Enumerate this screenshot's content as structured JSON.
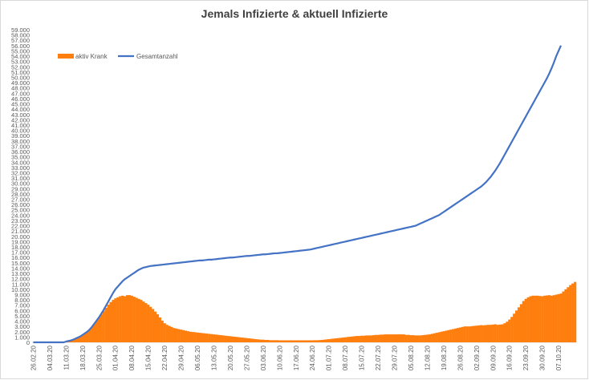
{
  "chart_data": {
    "type": "bar+line",
    "title": "Jemals Infizierte & aktuell Infizierte",
    "xlabel": "",
    "ylabel": "",
    "ylim": [
      0,
      59000
    ],
    "y_tick_step": 1000,
    "legend_position": "top-left",
    "grid": false,
    "x_tick_labels": [
      "26.02.20",
      "04.03.20",
      "11.03.20",
      "18.03.20",
      "25.03.20",
      "01.04.20",
      "08.04.20",
      "15.04.20",
      "22.04.20",
      "29.04.20",
      "06.05.20",
      "13.05.20",
      "20.05.20",
      "27.05.20",
      "03.06.20",
      "10.06.20",
      "17.06.20",
      "24.06.20",
      "01.07.20",
      "08.07.20",
      "15.07.20",
      "22.07.20",
      "29.07.20",
      "05.08.20",
      "12.08.20",
      "19.08.20",
      "26.08.20",
      "02.09.20",
      "09.09.20",
      "16.09.20",
      "23.09.20",
      "30.09.20",
      "07.10.20"
    ],
    "series": [
      {
        "name": "aktiv Krank",
        "type": "bar",
        "color": "#ff7f0e",
        "values": [
          0,
          0,
          0,
          0,
          0,
          0,
          0,
          0,
          0,
          0,
          0,
          0,
          0,
          0,
          150,
          250,
          350,
          500,
          700,
          900,
          1100,
          1400,
          1700,
          2000,
          2400,
          2900,
          3500,
          4100,
          4700,
          5300,
          5900,
          6500,
          7100,
          7600,
          8000,
          8300,
          8500,
          8700,
          8800,
          8700,
          8900,
          8900,
          8800,
          8600,
          8400,
          8200,
          8000,
          7700,
          7400,
          7100,
          6700,
          6300,
          5800,
          5300,
          4700,
          4100,
          3600,
          3300,
          3100,
          2900,
          2700,
          2600,
          2500,
          2400,
          2300,
          2200,
          2100,
          2000,
          1950,
          1900,
          1850,
          1800,
          1750,
          1700,
          1650,
          1600,
          1550,
          1500,
          1450,
          1400,
          1350,
          1300,
          1250,
          1200,
          1150,
          1100,
          1050,
          1000,
          950,
          900,
          850,
          800,
          750,
          700,
          650,
          600,
          550,
          500,
          500,
          450,
          450,
          400,
          400,
          400,
          400,
          380,
          380,
          380,
          380,
          380,
          380,
          380,
          380,
          380,
          380,
          380,
          380,
          380,
          380,
          380,
          400,
          400,
          420,
          450,
          500,
          550,
          600,
          650,
          700,
          750,
          800,
          850,
          900,
          950,
          1000,
          1050,
          1100,
          1150,
          1200,
          1200,
          1250,
          1250,
          1300,
          1300,
          1300,
          1350,
          1400,
          1400,
          1450,
          1450,
          1500,
          1500,
          1500,
          1500,
          1500,
          1500,
          1500,
          1500,
          1500,
          1400,
          1400,
          1350,
          1350,
          1300,
          1300,
          1300,
          1350,
          1400,
          1450,
          1500,
          1600,
          1700,
          1800,
          1900,
          2000,
          2100,
          2200,
          2300,
          2400,
          2500,
          2600,
          2700,
          2800,
          2900,
          3000,
          3000,
          3000,
          3050,
          3100,
          3150,
          3200,
          3250,
          3200,
          3250,
          3300,
          3300,
          3350,
          3400,
          3300,
          3350,
          3400,
          3600,
          3900,
          4300,
          4800,
          5400,
          6000,
          6600,
          7200,
          7800,
          8200,
          8500,
          8700,
          8800,
          8800,
          8800,
          8750,
          8700,
          8800,
          8850,
          8900,
          8800,
          8900,
          9000,
          9100,
          9200,
          9600,
          10000,
          10400,
          10800,
          11100,
          11400
        ],
        "note": "daily values, 26.02.20 to ~13.10.20"
      },
      {
        "name": "Gesamtanzahl",
        "type": "line",
        "color": "#4472c4",
        "values": [
          0,
          0,
          0,
          0,
          0,
          0,
          0,
          0,
          0,
          0,
          0,
          0,
          0,
          0,
          150,
          250,
          350,
          500,
          700,
          900,
          1100,
          1400,
          1700,
          2000,
          2400,
          2900,
          3500,
          4100,
          4700,
          5400,
          6100,
          6900,
          7700,
          8500,
          9300,
          10000,
          10500,
          11000,
          11500,
          11900,
          12200,
          12500,
          12800,
          13100,
          13400,
          13700,
          13900,
          14100,
          14200,
          14300,
          14400,
          14450,
          14500,
          14550,
          14600,
          14650,
          14700,
          14750,
          14800,
          14850,
          14900,
          14950,
          15000,
          15050,
          15100,
          15150,
          15200,
          15250,
          15300,
          15350,
          15400,
          15450,
          15450,
          15500,
          15550,
          15600,
          15600,
          15650,
          15700,
          15750,
          15800,
          15850,
          15900,
          15950,
          16000,
          16000,
          16050,
          16100,
          16150,
          16200,
          16250,
          16300,
          16300,
          16350,
          16400,
          16450,
          16500,
          16550,
          16600,
          16600,
          16650,
          16700,
          16750,
          16800,
          16800,
          16850,
          16900,
          16950,
          17000,
          17050,
          17100,
          17150,
          17200,
          17250,
          17300,
          17350,
          17400,
          17450,
          17500,
          17600,
          17700,
          17800,
          17900,
          18000,
          18100,
          18200,
          18300,
          18400,
          18500,
          18600,
          18700,
          18800,
          18900,
          19000,
          19100,
          19200,
          19300,
          19400,
          19500,
          19600,
          19700,
          19800,
          19900,
          20000,
          20100,
          20200,
          20300,
          20400,
          20500,
          20600,
          20700,
          20800,
          20900,
          21000,
          21100,
          21200,
          21300,
          21400,
          21500,
          21600,
          21700,
          21800,
          21900,
          22000,
          22200,
          22400,
          22600,
          22800,
          23000,
          23200,
          23400,
          23600,
          23800,
          24000,
          24300,
          24600,
          24900,
          25200,
          25500,
          25800,
          26100,
          26400,
          26700,
          27000,
          27300,
          27600,
          27900,
          28200,
          28500,
          28800,
          29100,
          29400,
          29800,
          30200,
          30700,
          31200,
          31800,
          32400,
          33100,
          33800,
          34600,
          35400,
          36200,
          37000,
          37800,
          38600,
          39400,
          40200,
          41000,
          41800,
          42600,
          43400,
          44200,
          45000,
          45800,
          46600,
          47400,
          48200,
          49000,
          49800,
          50700,
          51700,
          52800,
          54000,
          55000,
          56000
        ],
        "note": "daily values, 26.02.20 to ~13.10.20"
      }
    ]
  }
}
